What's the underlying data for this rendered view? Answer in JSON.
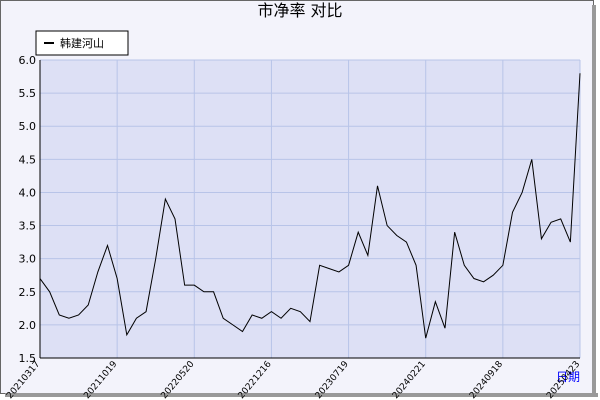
{
  "chart_data": {
    "type": "line",
    "title": "市净率  对比",
    "x_label": "日期",
    "categories": [
      "20210317",
      null,
      null,
      null,
      null,
      null,
      null,
      null,
      "20211019",
      null,
      null,
      null,
      null,
      null,
      null,
      null,
      "20220520",
      null,
      null,
      null,
      null,
      null,
      null,
      null,
      "20221216",
      null,
      null,
      null,
      null,
      null,
      null,
      null,
      "20230719",
      null,
      null,
      null,
      null,
      null,
      null,
      null,
      "20240221",
      null,
      null,
      null,
      null,
      null,
      null,
      null,
      "20240918",
      null,
      null,
      null,
      null,
      null,
      null,
      null,
      "20250423"
    ],
    "series": [
      {
        "name": "韩建河山",
        "color": "#000000",
        "values": [
          2.7,
          2.5,
          2.15,
          2.1,
          2.15,
          2.3,
          2.8,
          3.2,
          2.7,
          1.85,
          2.1,
          2.2,
          3.0,
          3.9,
          3.6,
          2.6,
          2.6,
          2.5,
          2.5,
          2.1,
          2.0,
          1.9,
          2.15,
          2.1,
          2.2,
          2.1,
          2.25,
          2.2,
          2.05,
          2.9,
          2.85,
          2.8,
          2.9,
          3.4,
          3.05,
          4.1,
          3.5,
          3.35,
          3.25,
          2.9,
          1.8,
          2.35,
          1.95,
          3.4,
          2.9,
          2.7,
          2.65,
          2.75,
          2.9,
          3.7,
          4.0,
          4.5,
          3.3,
          3.55,
          3.6,
          3.25,
          5.8
        ]
      }
    ],
    "ylim": [
      1.5,
      6.0
    ],
    "yticks": [
      {
        "value": 1.5,
        "label": "1.5"
      },
      {
        "value": 2.0,
        "label": "2.0"
      },
      {
        "value": 2.5,
        "label": "2.5"
      },
      {
        "value": 3.0,
        "label": "3.0"
      },
      {
        "value": 3.5,
        "label": "3.5"
      },
      {
        "value": 4.0,
        "label": "4.0"
      },
      {
        "value": 4.5,
        "label": "4.5"
      },
      {
        "value": 5.0,
        "label": "5.0"
      },
      {
        "value": 5.5,
        "label": "5.5"
      },
      {
        "value": 6.0,
        "label": "6.0"
      }
    ],
    "grid": true,
    "legend": "top-left"
  }
}
